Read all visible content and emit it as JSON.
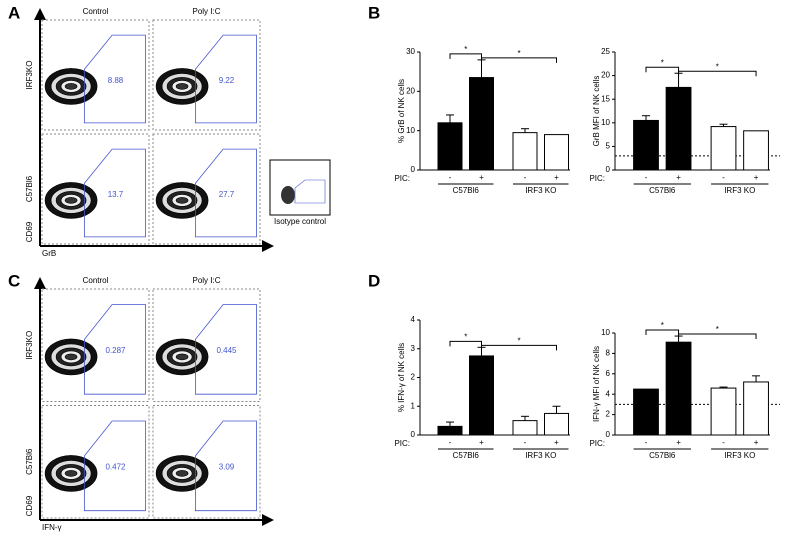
{
  "letters": [
    "A",
    "B",
    "C",
    "D"
  ],
  "panel_A": {
    "columns": [
      "Control",
      "Poly I:C"
    ],
    "rows": [
      "IRF3KO",
      "C57Bl6"
    ],
    "gates": [
      [
        "8.88",
        "9.22"
      ],
      [
        "13.7",
        "27.7"
      ]
    ],
    "y_axis": "CD69",
    "x_axis": "GrB",
    "isotype": "Isotype control"
  },
  "panel_C": {
    "columns": [
      "Control",
      "Poly I:C"
    ],
    "rows": [
      "IRF3KO",
      "C57Bl6"
    ],
    "gates": [
      [
        "0.287",
        "0.445"
      ],
      [
        "0.472",
        "3.09"
      ]
    ],
    "y_axis": "CD69",
    "x_axis": "IFN-γ"
  },
  "chart_data": [
    {
      "type": "bar",
      "y_label": "% GrB of NK cells",
      "categories": [
        "-",
        "+",
        "-",
        "+"
      ],
      "values": [
        12,
        23.5,
        9.5,
        9
      ],
      "errors": [
        2,
        4.5,
        1,
        0
      ],
      "colors": [
        "#000000",
        "#000000",
        "#ffffff",
        "#ffffff"
      ],
      "ylim": [
        0,
        30
      ],
      "yticks": [
        0,
        10,
        20,
        30
      ],
      "x_prefix": "PIC:",
      "group_labels": [
        "C57Bl6",
        "IRF3 KO"
      ],
      "significance": [
        {
          "from": 0,
          "to": 1,
          "label": "*"
        },
        {
          "from": 1,
          "to": 3,
          "label": "*"
        }
      ]
    },
    {
      "type": "bar",
      "y_label": "GrB MFI of NK cells",
      "categories": [
        "-",
        "+",
        "-",
        "+"
      ],
      "values": [
        10.5,
        17.5,
        9.2,
        8.3
      ],
      "errors": [
        1,
        3,
        0.5,
        0
      ],
      "colors": [
        "#000000",
        "#000000",
        "#ffffff",
        "#ffffff"
      ],
      "ylim": [
        0,
        25
      ],
      "yticks": [
        0,
        5,
        10,
        15,
        20,
        25
      ],
      "reference_line": 3,
      "x_prefix": "PIC:",
      "group_labels": [
        "C57Bl6",
        "IRF3 KO"
      ],
      "significance": [
        {
          "from": 0,
          "to": 1,
          "label": "*"
        },
        {
          "from": 1,
          "to": 3,
          "label": "*"
        }
      ]
    },
    {
      "type": "bar",
      "y_label": "% IFN-γ of NK cells",
      "categories": [
        "-",
        "+",
        "-",
        "+"
      ],
      "values": [
        0.3,
        2.75,
        0.5,
        0.75
      ],
      "errors": [
        0.15,
        0.3,
        0.15,
        0.25
      ],
      "colors": [
        "#000000",
        "#000000",
        "#ffffff",
        "#ffffff"
      ],
      "ylim": [
        0,
        4
      ],
      "yticks": [
        0,
        1,
        2,
        3,
        4
      ],
      "x_prefix": "PIC:",
      "group_labels": [
        "C57Bl6",
        "IRF3 KO"
      ],
      "significance": [
        {
          "from": 0,
          "to": 1,
          "label": "*"
        },
        {
          "from": 1,
          "to": 3,
          "label": "*"
        }
      ]
    },
    {
      "type": "bar",
      "y_label": "IFN-γ MFI of NK cells",
      "categories": [
        "-",
        "+",
        "-",
        "+"
      ],
      "values": [
        4.5,
        9.1,
        4.6,
        5.2
      ],
      "errors": [
        0,
        0.6,
        0.1,
        0.6
      ],
      "colors": [
        "#000000",
        "#000000",
        "#ffffff",
        "#ffffff"
      ],
      "ylim": [
        0,
        10
      ],
      "yticks": [
        0,
        2,
        4,
        6,
        8,
        10
      ],
      "reference_line": 3,
      "x_prefix": "PIC:",
      "group_labels": [
        "C57Bl6",
        "IRF3 KO"
      ],
      "significance": [
        {
          "from": 0,
          "to": 1,
          "label": "*"
        },
        {
          "from": 1,
          "to": 3,
          "label": "*"
        }
      ]
    }
  ]
}
